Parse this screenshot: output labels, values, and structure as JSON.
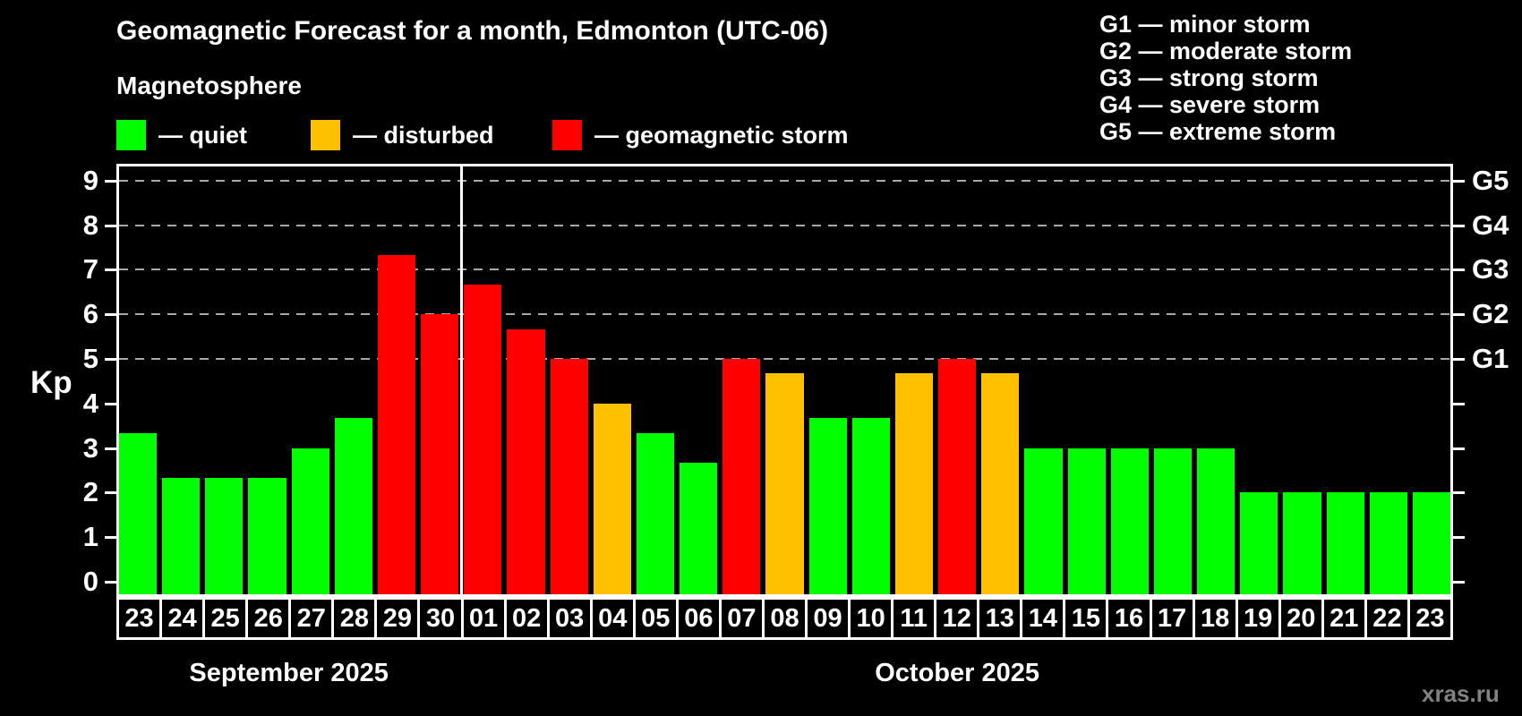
{
  "header": {
    "title": "Geomagnetic Forecast for a month, Edmonton (UTC-06)",
    "subtitle": "Magnetosphere",
    "legend": [
      {
        "key": "quiet",
        "label": "— quiet",
        "color": "#00ff00"
      },
      {
        "key": "disturbed",
        "label": "— disturbed",
        "color": "#ffc000"
      },
      {
        "key": "storm",
        "label": "— geomagnetic storm",
        "color": "#ff0000"
      }
    ]
  },
  "storm_scale_legend": [
    "G1 — minor storm",
    "G2 — moderate storm",
    "G3 — strong storm",
    "G4 — severe storm",
    "G5 — extreme storm"
  ],
  "watermark": "xras.ru",
  "chart_data": {
    "type": "bar",
    "title": "Geomagnetic Forecast for a month, Edmonton (UTC-06)",
    "ylabel": "Kp",
    "ylim": [
      0,
      9
    ],
    "y_ticks": [
      0,
      1,
      2,
      3,
      4,
      5,
      6,
      7,
      8,
      9
    ],
    "grid": "dashed horizontal lines at Kp 5-9 (G1-G5 levels)",
    "gridlines_at_kp": [
      5,
      6,
      7,
      8,
      9
    ],
    "right_axis_labels": [
      {
        "kp": 5,
        "label": "G1"
      },
      {
        "kp": 6,
        "label": "G2"
      },
      {
        "kp": 7,
        "label": "G3"
      },
      {
        "kp": 8,
        "label": "G4"
      },
      {
        "kp": 9,
        "label": "G5"
      }
    ],
    "legend_position": "top-left",
    "months": [
      {
        "label": "September 2025",
        "count": 8
      },
      {
        "label": "October 2025",
        "count": 23
      }
    ],
    "status_colors": {
      "quiet": "#00ff00",
      "disturbed": "#ffc000",
      "storm": "#ff0000"
    },
    "bars": [
      {
        "date": "23",
        "value": 3.33,
        "status": "quiet"
      },
      {
        "date": "24",
        "value": 2.33,
        "status": "quiet"
      },
      {
        "date": "25",
        "value": 2.33,
        "status": "quiet"
      },
      {
        "date": "26",
        "value": 2.33,
        "status": "quiet"
      },
      {
        "date": "27",
        "value": 3.0,
        "status": "quiet"
      },
      {
        "date": "28",
        "value": 3.67,
        "status": "quiet"
      },
      {
        "date": "29",
        "value": 7.33,
        "status": "storm"
      },
      {
        "date": "30",
        "value": 6.0,
        "status": "storm"
      },
      {
        "date": "01",
        "value": 6.67,
        "status": "storm"
      },
      {
        "date": "02",
        "value": 5.67,
        "status": "storm"
      },
      {
        "date": "03",
        "value": 5.0,
        "status": "storm"
      },
      {
        "date": "04",
        "value": 4.0,
        "status": "disturbed"
      },
      {
        "date": "05",
        "value": 3.33,
        "status": "quiet"
      },
      {
        "date": "06",
        "value": 2.67,
        "status": "quiet"
      },
      {
        "date": "07",
        "value": 5.0,
        "status": "storm"
      },
      {
        "date": "08",
        "value": 4.67,
        "status": "disturbed"
      },
      {
        "date": "09",
        "value": 3.67,
        "status": "quiet"
      },
      {
        "date": "10",
        "value": 3.67,
        "status": "quiet"
      },
      {
        "date": "11",
        "value": 4.67,
        "status": "disturbed"
      },
      {
        "date": "12",
        "value": 5.0,
        "status": "storm"
      },
      {
        "date": "13",
        "value": 4.67,
        "status": "disturbed"
      },
      {
        "date": "14",
        "value": 3.0,
        "status": "quiet"
      },
      {
        "date": "15",
        "value": 3.0,
        "status": "quiet"
      },
      {
        "date": "16",
        "value": 3.0,
        "status": "quiet"
      },
      {
        "date": "17",
        "value": 3.0,
        "status": "quiet"
      },
      {
        "date": "18",
        "value": 3.0,
        "status": "quiet"
      },
      {
        "date": "19",
        "value": 2.0,
        "status": "quiet"
      },
      {
        "date": "20",
        "value": 2.0,
        "status": "quiet"
      },
      {
        "date": "21",
        "value": 2.0,
        "status": "quiet"
      },
      {
        "date": "22",
        "value": 2.0,
        "status": "quiet"
      },
      {
        "date": "23",
        "value": 2.0,
        "status": "quiet"
      }
    ]
  }
}
